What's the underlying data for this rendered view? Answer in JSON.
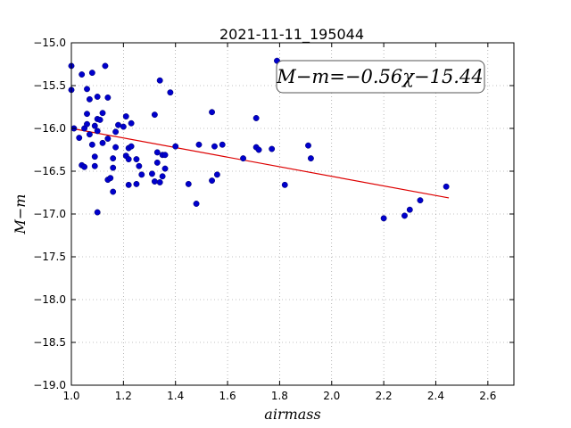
{
  "chart_data": {
    "type": "scatter",
    "title": "2021-11-11_195044",
    "xlabel": "airmass",
    "ylabel": "M−m",
    "xlim": [
      1.0,
      2.7
    ],
    "ylim": [
      -19.0,
      -15.0
    ],
    "y_inverted": true,
    "grid": true,
    "xticks": [
      1.0,
      1.2,
      1.4,
      1.6,
      1.8,
      2.0,
      2.2,
      2.4,
      2.6
    ],
    "xtick_labels": [
      "1.0",
      "1.2",
      "1.4",
      "1.6",
      "1.8",
      "2.0",
      "2.2",
      "2.4",
      "2.6"
    ],
    "yticks": [
      -15.0,
      -15.5,
      -16.0,
      -16.5,
      -17.0,
      -17.5,
      -18.0,
      -18.5,
      -19.0
    ],
    "ytick_labels": [
      "−15.0",
      "−15.5",
      "−16.0",
      "−16.5",
      "−17.0",
      "−17.5",
      "−18.0",
      "−18.5",
      "−19.0"
    ],
    "annotation": "M−m=−0.56χ−15.44",
    "point_color": "#0000cc",
    "fit_color": "#dd0000",
    "fit": {
      "slope": -0.56,
      "intercept": -15.44,
      "x_range": [
        1.0,
        2.45
      ]
    },
    "series": [
      {
        "points": [
          [
            1.0,
            -15.27
          ],
          [
            1.0,
            -15.55
          ],
          [
            1.01,
            -16.0
          ],
          [
            1.03,
            -16.11
          ],
          [
            1.04,
            -15.37
          ],
          [
            1.04,
            -16.43
          ],
          [
            1.05,
            -16.45
          ],
          [
            1.05,
            -16.0
          ],
          [
            1.06,
            -15.83
          ],
          [
            1.06,
            -15.95
          ],
          [
            1.06,
            -15.54
          ],
          [
            1.07,
            -15.66
          ],
          [
            1.07,
            -16.07
          ],
          [
            1.08,
            -15.35
          ],
          [
            1.08,
            -16.19
          ],
          [
            1.09,
            -15.97
          ],
          [
            1.09,
            -16.33
          ],
          [
            1.09,
            -16.44
          ],
          [
            1.1,
            -15.89
          ],
          [
            1.1,
            -16.03
          ],
          [
            1.1,
            -15.63
          ],
          [
            1.11,
            -15.9
          ],
          [
            1.1,
            -16.98
          ],
          [
            1.12,
            -15.82
          ],
          [
            1.12,
            -16.17
          ],
          [
            1.13,
            -15.27
          ],
          [
            1.14,
            -15.64
          ],
          [
            1.14,
            -16.12
          ],
          [
            1.14,
            -16.6
          ],
          [
            1.15,
            -16.58
          ],
          [
            1.16,
            -16.35
          ],
          [
            1.16,
            -16.46
          ],
          [
            1.16,
            -16.74
          ],
          [
            1.17,
            -16.04
          ],
          [
            1.17,
            -16.22
          ],
          [
            1.18,
            -15.96
          ],
          [
            1.2,
            -15.98
          ],
          [
            1.21,
            -15.86
          ],
          [
            1.21,
            -16.32
          ],
          [
            1.22,
            -16.23
          ],
          [
            1.22,
            -16.36
          ],
          [
            1.22,
            -16.66
          ],
          [
            1.23,
            -15.94
          ],
          [
            1.23,
            -16.21
          ],
          [
            1.25,
            -16.36
          ],
          [
            1.25,
            -16.65
          ],
          [
            1.26,
            -16.44
          ],
          [
            1.27,
            -16.54
          ],
          [
            1.31,
            -16.53
          ],
          [
            1.32,
            -16.62
          ],
          [
            1.32,
            -15.84
          ],
          [
            1.33,
            -16.4
          ],
          [
            1.33,
            -16.28
          ],
          [
            1.34,
            -15.44
          ],
          [
            1.34,
            -16.63
          ],
          [
            1.35,
            -16.31
          ],
          [
            1.35,
            -16.56
          ],
          [
            1.36,
            -16.31
          ],
          [
            1.36,
            -16.47
          ],
          [
            1.38,
            -15.58
          ],
          [
            1.4,
            -16.21
          ],
          [
            1.45,
            -16.65
          ],
          [
            1.48,
            -16.88
          ],
          [
            1.49,
            -16.19
          ],
          [
            1.54,
            -15.81
          ],
          [
            1.54,
            -16.61
          ],
          [
            1.55,
            -16.21
          ],
          [
            1.56,
            -16.54
          ],
          [
            1.58,
            -16.19
          ],
          [
            1.66,
            -16.35
          ],
          [
            1.71,
            -15.88
          ],
          [
            1.71,
            -16.22
          ],
          [
            1.72,
            -16.25
          ],
          [
            1.77,
            -16.24
          ],
          [
            1.79,
            -15.21
          ],
          [
            1.82,
            -16.66
          ],
          [
            1.91,
            -16.2
          ],
          [
            1.92,
            -16.35
          ],
          [
            2.2,
            -17.05
          ],
          [
            2.28,
            -17.02
          ],
          [
            2.3,
            -16.95
          ],
          [
            2.34,
            -16.84
          ],
          [
            2.44,
            -16.68
          ]
        ]
      }
    ]
  }
}
